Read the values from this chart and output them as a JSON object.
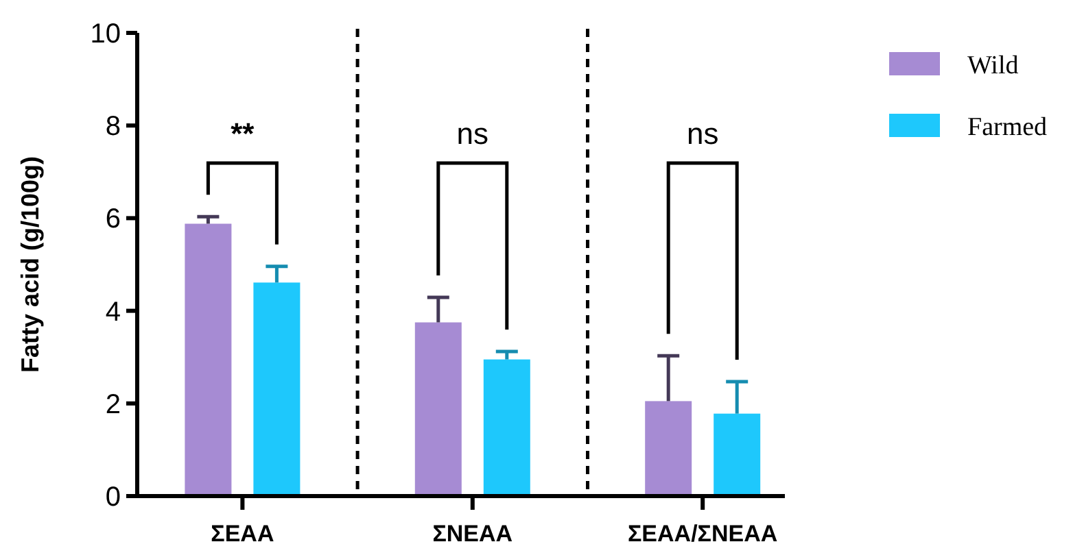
{
  "chart_data": {
    "type": "bar",
    "ylabel": "Fatty acid (g/100g)",
    "categories": [
      "ΣEAA",
      "ΣNEAA",
      "ΣEAA/ΣNEAA"
    ],
    "series": [
      {
        "name": "Wild",
        "color": "#a68bd3",
        "values": [
          5.88,
          3.75,
          2.05
        ],
        "errors": [
          [
            5.88,
            6.03
          ],
          [
            3.75,
            4.29
          ],
          [
            2.05,
            3.03
          ]
        ]
      },
      {
        "name": "Farmed",
        "color": "#1ec8fc",
        "values": [
          4.61,
          2.95,
          1.78
        ],
        "errors": [
          [
            4.61,
            4.96
          ],
          [
            2.95,
            3.12
          ],
          [
            1.78,
            2.47
          ]
        ]
      }
    ],
    "ylim": [
      0,
      10
    ],
    "yticks": [
      0,
      2,
      4,
      6,
      8,
      10
    ],
    "grid": false,
    "legend": "top right",
    "annotations": [
      "**",
      "ns",
      "ns"
    ]
  }
}
